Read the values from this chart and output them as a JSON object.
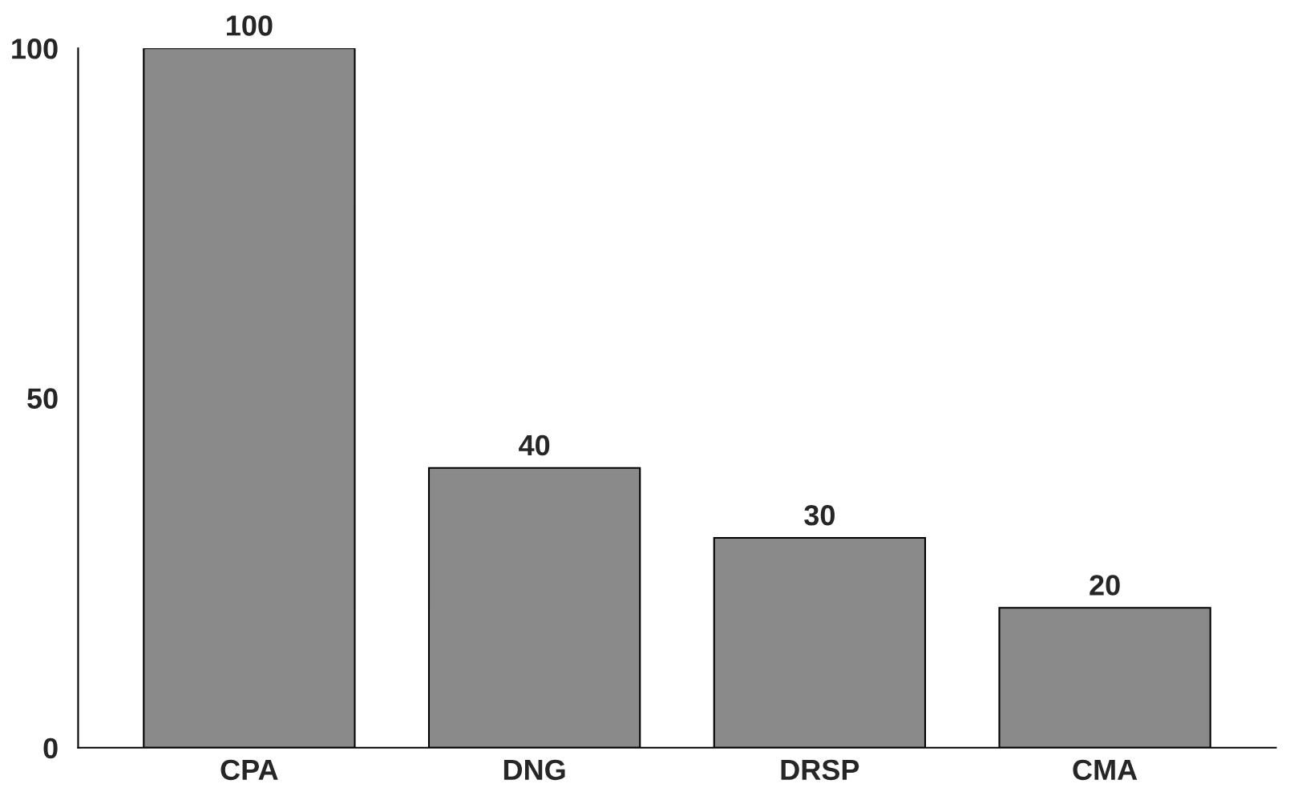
{
  "chart_data": {
    "type": "bar",
    "categories": [
      "CPA",
      "DNG",
      "DRSP",
      "CMA"
    ],
    "values": [
      100,
      40,
      30,
      20
    ],
    "color": "#8a8a8a",
    "ylim": [
      0,
      100
    ],
    "yticks": [
      0,
      50,
      100
    ],
    "data_labels": true,
    "grid": false
  }
}
